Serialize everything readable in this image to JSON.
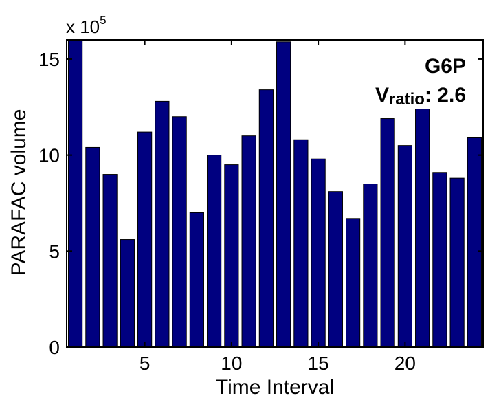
{
  "chart_data": {
    "type": "bar",
    "categories": [
      1,
      2,
      3,
      4,
      5,
      6,
      7,
      8,
      9,
      10,
      11,
      12,
      13,
      14,
      15,
      16,
      17,
      18,
      19,
      20,
      21,
      22,
      23,
      24
    ],
    "values": [
      16.0,
      10.4,
      9.0,
      5.6,
      11.2,
      12.8,
      12.0,
      7.0,
      10.0,
      9.5,
      11.0,
      13.4,
      15.9,
      10.8,
      9.8,
      8.1,
      6.7,
      8.5,
      11.9,
      10.5,
      12.4,
      9.1,
      8.8,
      10.9
    ],
    "bar_color": "#000080",
    "xlabel": "Time Interval",
    "ylabel": "PARAFAC volume",
    "xticks": [
      5,
      10,
      15,
      20
    ],
    "yticks": [
      0,
      5,
      10,
      15
    ],
    "xlim": [
      0.5,
      24.5
    ],
    "ylim": [
      0,
      16
    ],
    "y_multiplier": "x 10",
    "y_multiplier_exp": "5",
    "annotation_name": "G6P",
    "annotation_ratio_label": "V",
    "annotation_ratio_sub": "ratio",
    "annotation_ratio_value": ": 2.6",
    "grid": false
  }
}
